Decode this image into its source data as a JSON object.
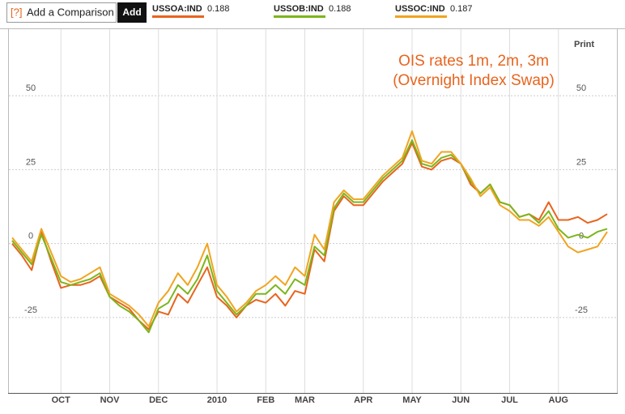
{
  "ui": {
    "help": "[?]",
    "comparison_placeholder": "Add a Comparison",
    "add_button": "Add",
    "print": "Print"
  },
  "chart_data": {
    "type": "line",
    "title": "OIS rates 1m, 2m, 3m",
    "subtitle": "(Overnight Index Swap)",
    "categories": [
      null,
      null,
      null,
      null,
      null,
      "OCT",
      null,
      null,
      null,
      null,
      "NOV",
      null,
      null,
      null,
      null,
      "DEC",
      null,
      null,
      null,
      null,
      null,
      "2010",
      null,
      null,
      null,
      null,
      "FEB",
      null,
      null,
      null,
      "MAR",
      null,
      null,
      null,
      null,
      null,
      "APR",
      null,
      null,
      null,
      null,
      "MAY",
      null,
      null,
      null,
      null,
      "JUN",
      null,
      null,
      null,
      null,
      "JUL",
      null,
      null,
      null,
      null,
      "AUG",
      null,
      null,
      null,
      null,
      null
    ],
    "series": [
      {
        "name": "USSOA:IND",
        "last": 0.188,
        "color": "#e8641e",
        "values": [
          0,
          -4,
          -9,
          4,
          -6,
          -15,
          -14,
          -14,
          -13,
          -11,
          -18,
          -20,
          -22,
          -26,
          -29,
          -23,
          -24,
          -17,
          -20,
          -14,
          -8,
          -18,
          -21,
          -25,
          -21,
          -19,
          -20,
          -17,
          -21,
          -16,
          -17,
          -2,
          -6,
          11,
          16,
          13,
          13,
          17,
          21,
          24,
          27,
          34,
          26,
          25,
          28,
          29,
          27,
          20,
          17,
          20,
          14,
          13,
          9,
          10,
          8,
          14,
          8,
          8,
          9,
          7,
          8,
          10
        ]
      },
      {
        "name": "USSOB:IND",
        "last": 0.188,
        "color": "#7cb51c",
        "values": [
          1,
          -3,
          -7,
          3,
          -5,
          -13,
          -14,
          -13,
          -12,
          -10,
          -18,
          -21,
          -23,
          -26,
          -30,
          -22,
          -20,
          -14,
          -17,
          -12,
          -4,
          -16,
          -20,
          -24,
          -21,
          -17,
          -17,
          -14,
          -17,
          -12,
          -14,
          -1,
          -4,
          12,
          17,
          14,
          14,
          18,
          22,
          25,
          28,
          35,
          27,
          26,
          29,
          30,
          27,
          21,
          17,
          20,
          14,
          13,
          9,
          10,
          7,
          11,
          5,
          2,
          3,
          2,
          4,
          5
        ]
      },
      {
        "name": "USSOC:IND",
        "last": 0.187,
        "color": "#f0a420",
        "values": [
          2,
          -2,
          -6,
          5,
          -3,
          -11,
          -13,
          -12,
          -10,
          -8,
          -17,
          -19,
          -21,
          -24,
          -28,
          -20,
          -16,
          -10,
          -14,
          -8,
          0,
          -14,
          -18,
          -23,
          -20,
          -16,
          -14,
          -11,
          -14,
          -8,
          -11,
          3,
          -2,
          14,
          18,
          15,
          15,
          19,
          23,
          26,
          29,
          38,
          28,
          27,
          31,
          31,
          27,
          22,
          16,
          19,
          13,
          11,
          8,
          8,
          6,
          9,
          4,
          -1,
          -3,
          -2,
          -1,
          4
        ]
      }
    ],
    "ylim": [
      -50.5,
      72.5
    ],
    "yticks": [
      -25,
      0,
      25,
      50
    ],
    "grid": true,
    "title_color": "#e8641e"
  }
}
